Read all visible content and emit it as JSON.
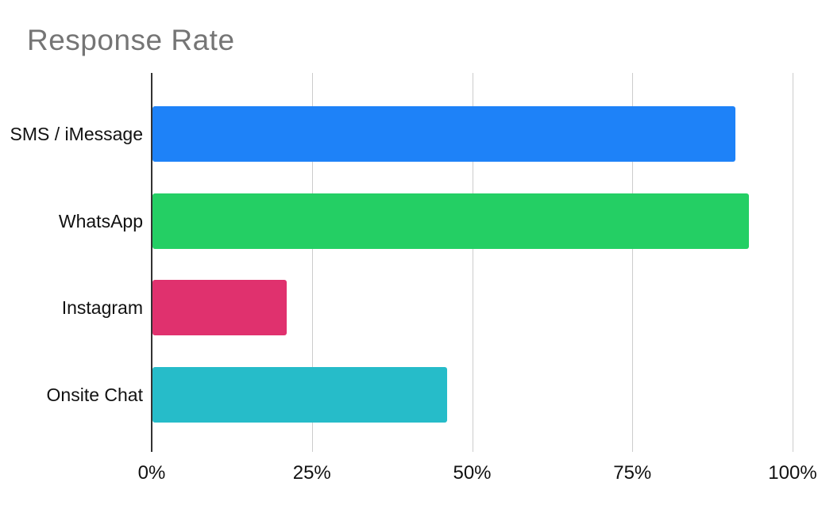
{
  "chart": {
    "title": "Response Rate"
  },
  "chart_data": {
    "type": "bar",
    "orientation": "horizontal",
    "title": "Response Rate",
    "categories": [
      "SMS / iMessage",
      "WhatsApp",
      "Instagram",
      "Onsite Chat"
    ],
    "values": [
      91,
      93,
      21,
      46
    ],
    "value_unit": "%",
    "bar_colors": [
      "#1e82f8",
      "#24cf64",
      "#e0316e",
      "#26bcc9"
    ],
    "xlabel": "",
    "ylabel": "",
    "xlim": [
      0,
      100
    ],
    "x_ticks": [
      "0%",
      "25%",
      "50%",
      "75%",
      "100%"
    ],
    "x_tick_values": [
      0,
      25,
      50,
      75,
      100
    ],
    "grid": "vertical",
    "legend": "none",
    "colors": {
      "title_color": "#757575",
      "axis_line_color": "#333333",
      "gridline_color": "#cccccc",
      "label_color": "#111111",
      "background": "#ffffff"
    }
  }
}
